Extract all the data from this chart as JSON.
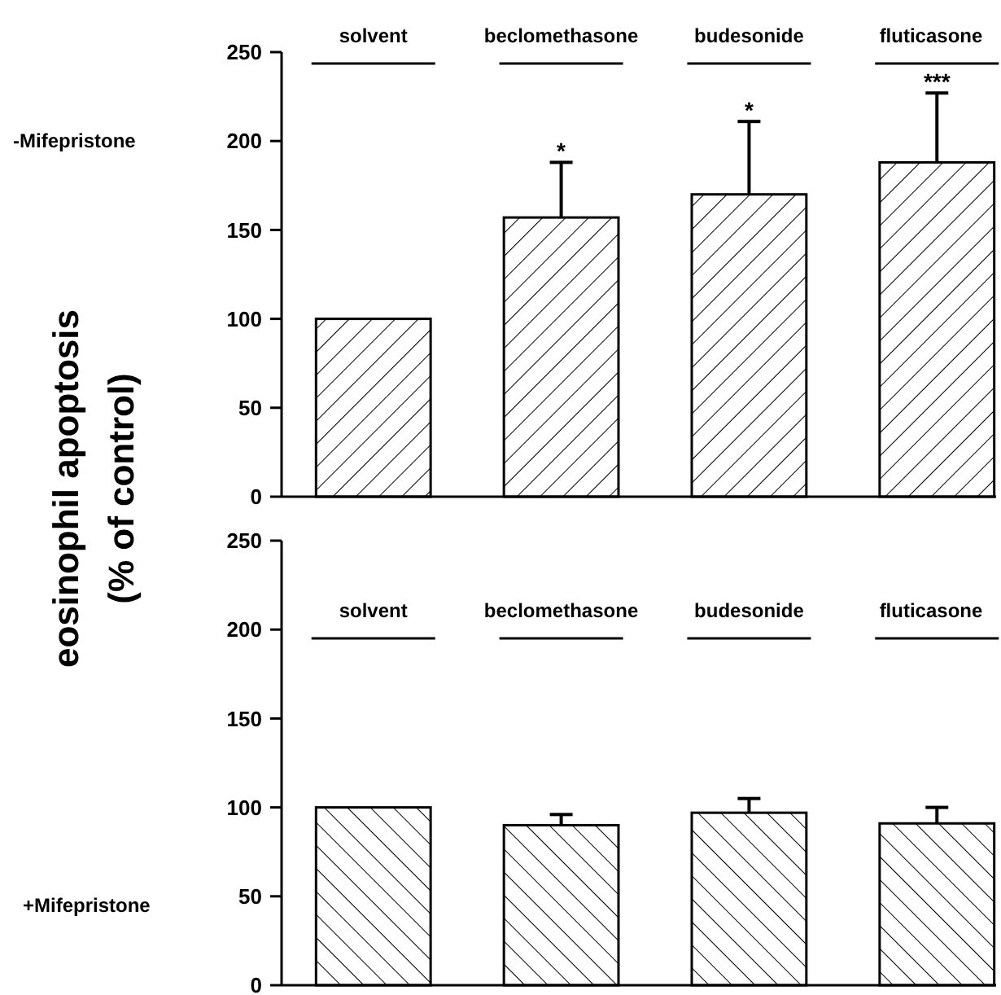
{
  "chart_data": [
    {
      "type": "bar",
      "title": "-Mifepristone",
      "ylabel": "eosinophil apoptosis\n(% of control)",
      "categories": [
        "solvent",
        "beclomethasone",
        "budesonide",
        "fluticasone"
      ],
      "values": [
        100,
        157,
        170,
        188
      ],
      "errors": [
        null,
        [
          157,
          188
        ],
        [
          170,
          211
        ],
        [
          188,
          227
        ]
      ],
      "color": "#000000",
      "ylim": [
        0,
        250
      ],
      "yticks": [
        0,
        50,
        100,
        150,
        200,
        250
      ],
      "annotations": [
        {
          "text": "*",
          "x": "beclomethasone",
          "y": 188
        },
        {
          "text": "*",
          "x": "budesonide",
          "y": 211
        },
        {
          "text": "***",
          "x": "fluticasone",
          "y": 227
        }
      ]
    },
    {
      "type": "bar",
      "title": "+Mifepristone",
      "categories": [
        "solvent",
        "beclomethasone",
        "budesonide",
        "fluticasone"
      ],
      "values": [
        100,
        90,
        97,
        91
      ],
      "errors": [
        null,
        [
          90,
          96
        ],
        [
          97,
          105
        ],
        [
          91,
          100
        ]
      ],
      "color": "#000000",
      "ylim": [
        0,
        250
      ],
      "yticks": [
        0,
        50,
        100,
        150,
        200,
        250
      ]
    }
  ]
}
